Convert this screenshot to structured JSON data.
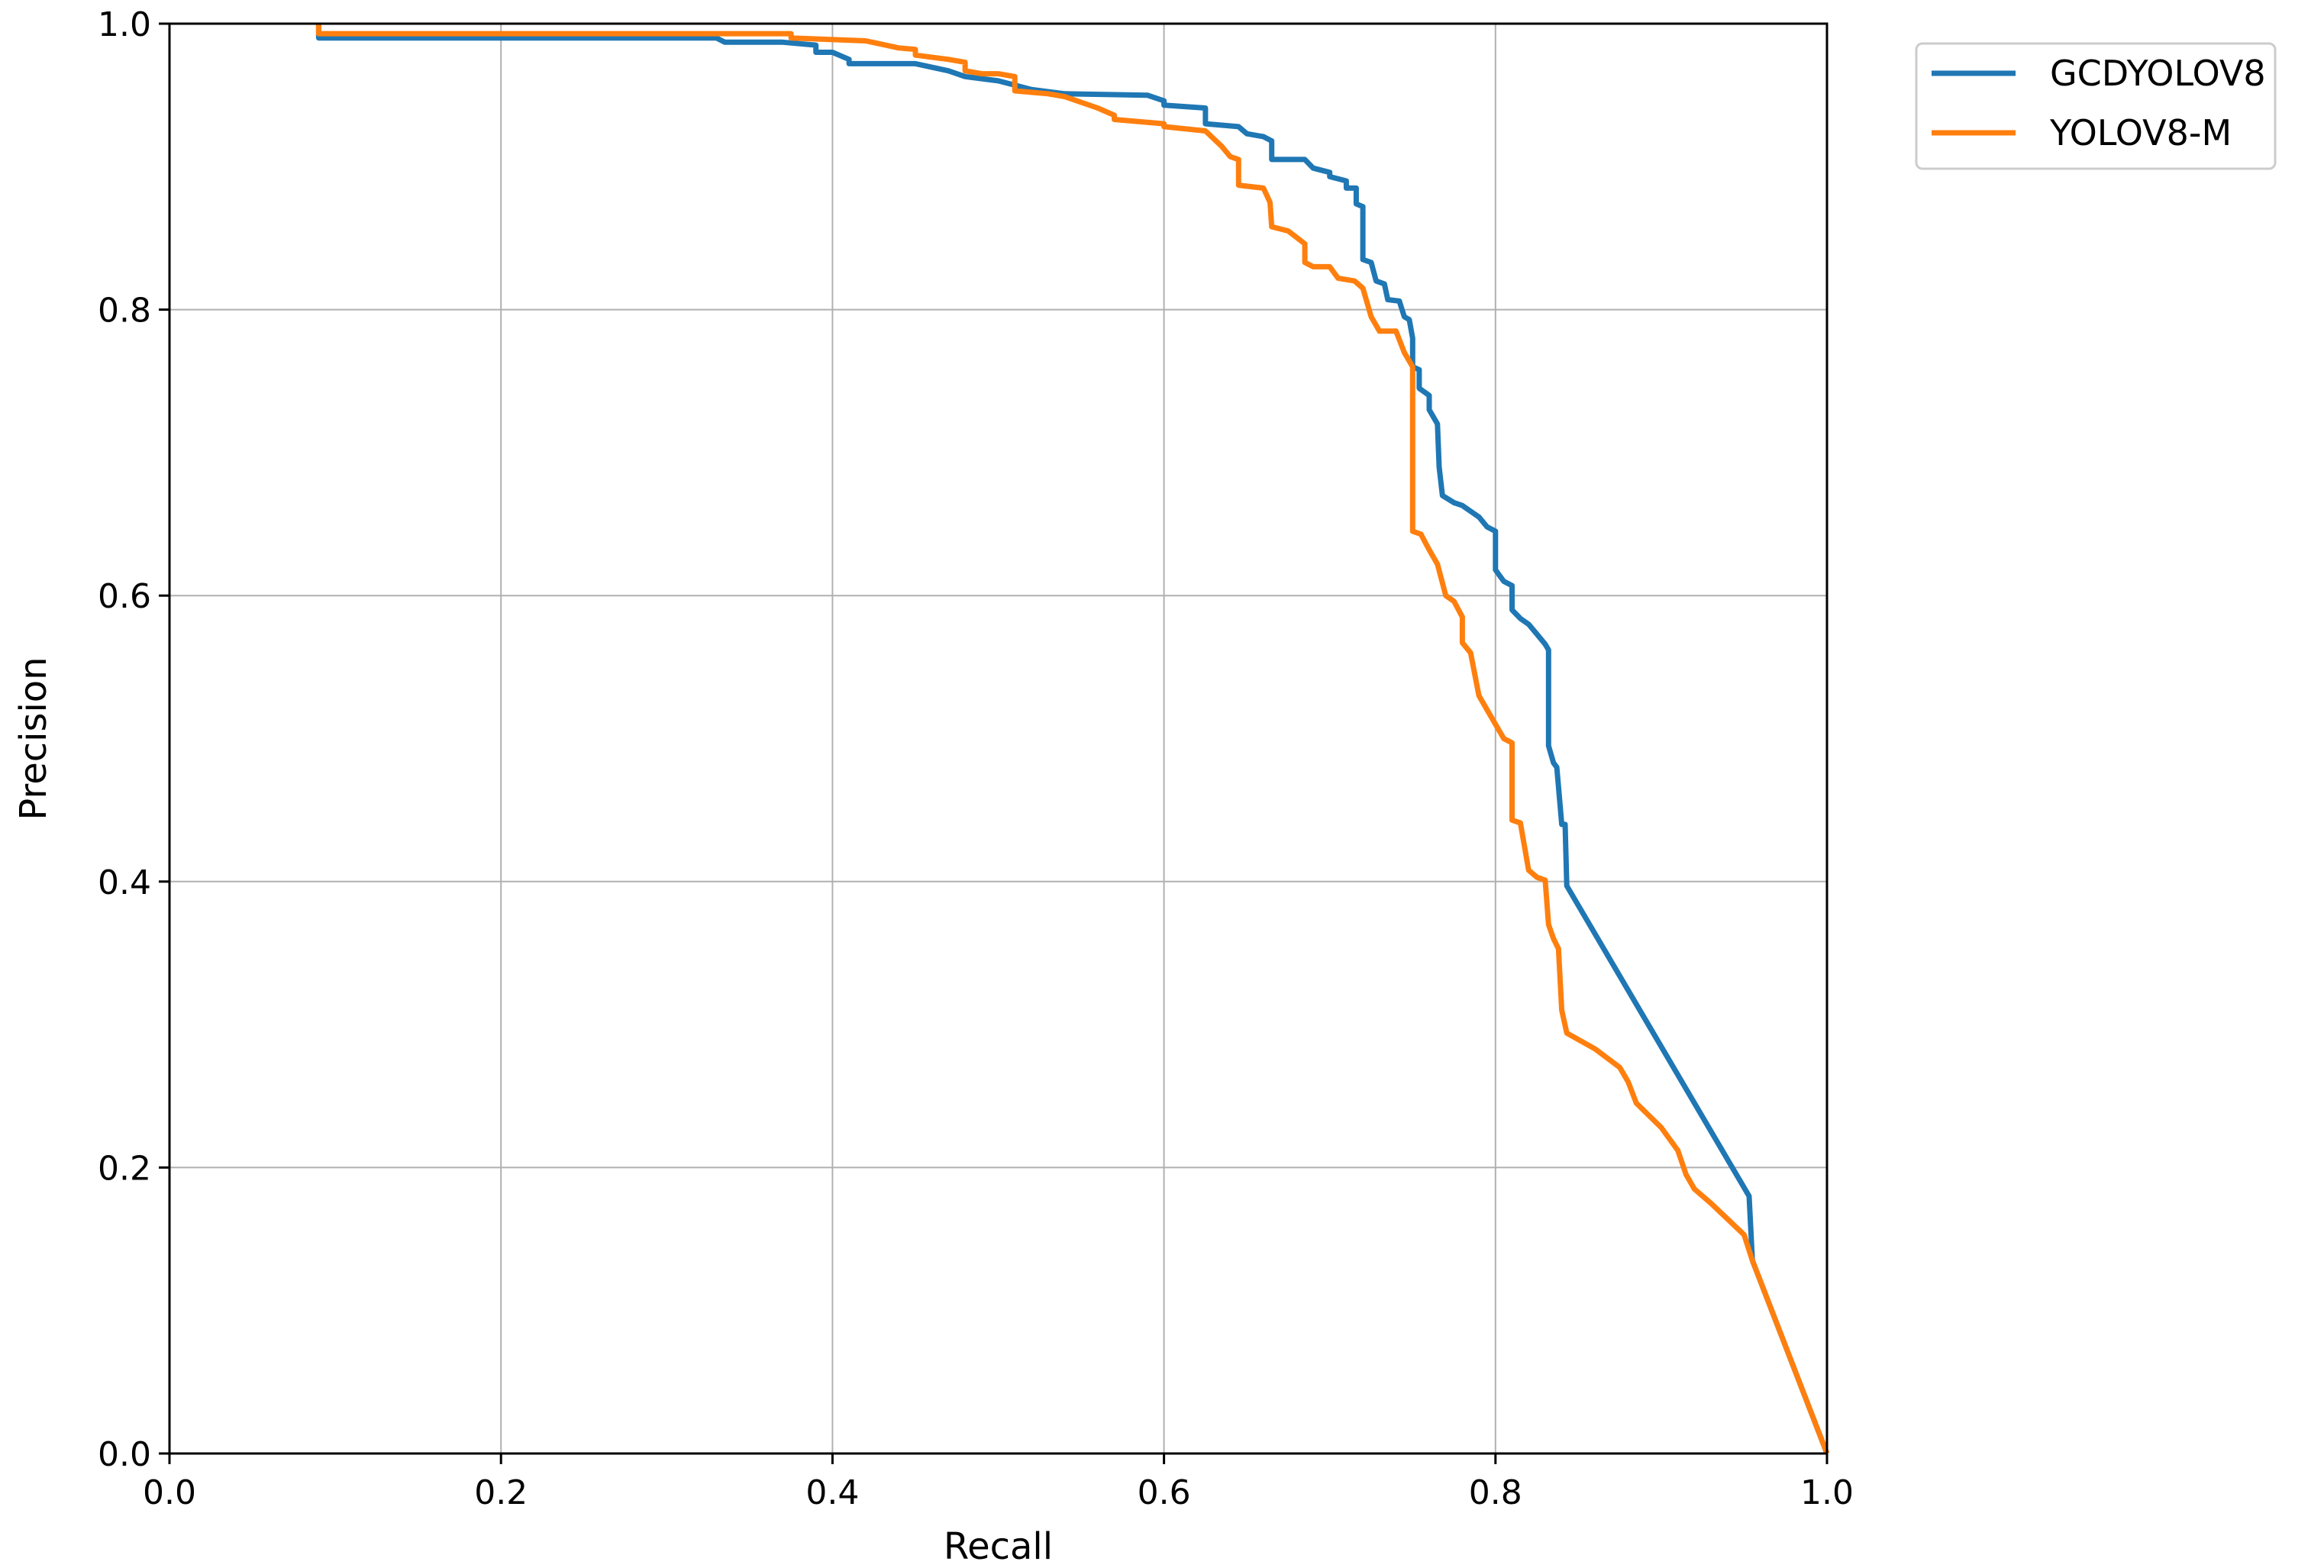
{
  "chart_data": {
    "type": "line",
    "title": "",
    "xlabel": "Recall",
    "ylabel": "Precision",
    "xlim": [
      0.0,
      1.0
    ],
    "ylim": [
      0.0,
      1.0
    ],
    "xticks": [
      "0.0",
      "0.2",
      "0.4",
      "0.6",
      "0.8",
      "1.0"
    ],
    "yticks": [
      "0.0",
      "0.2",
      "0.4",
      "0.6",
      "0.8",
      "1.0"
    ],
    "grid": true,
    "legend_position": "outside top-right",
    "series": [
      {
        "name": "GCDYOLOV8",
        "color": "#1f77b4",
        "points": [
          [
            0.09,
            1.0
          ],
          [
            0.09,
            0.99
          ],
          [
            0.33,
            0.99
          ],
          [
            0.335,
            0.987
          ],
          [
            0.37,
            0.987
          ],
          [
            0.39,
            0.985
          ],
          [
            0.39,
            0.98
          ],
          [
            0.4,
            0.98
          ],
          [
            0.41,
            0.975
          ],
          [
            0.41,
            0.972
          ],
          [
            0.45,
            0.972
          ],
          [
            0.47,
            0.967
          ],
          [
            0.48,
            0.963
          ],
          [
            0.5,
            0.96
          ],
          [
            0.51,
            0.957
          ],
          [
            0.52,
            0.954
          ],
          [
            0.54,
            0.951
          ],
          [
            0.59,
            0.95
          ],
          [
            0.6,
            0.946
          ],
          [
            0.6,
            0.943
          ],
          [
            0.625,
            0.941
          ],
          [
            0.625,
            0.93
          ],
          [
            0.645,
            0.928
          ],
          [
            0.65,
            0.923
          ],
          [
            0.66,
            0.921
          ],
          [
            0.665,
            0.918
          ],
          [
            0.665,
            0.905
          ],
          [
            0.685,
            0.905
          ],
          [
            0.69,
            0.899
          ],
          [
            0.7,
            0.896
          ],
          [
            0.7,
            0.893
          ],
          [
            0.71,
            0.89
          ],
          [
            0.71,
            0.885
          ],
          [
            0.716,
            0.885
          ],
          [
            0.716,
            0.874
          ],
          [
            0.72,
            0.872
          ],
          [
            0.72,
            0.835
          ],
          [
            0.725,
            0.833
          ],
          [
            0.728,
            0.82
          ],
          [
            0.733,
            0.818
          ],
          [
            0.735,
            0.807
          ],
          [
            0.742,
            0.806
          ],
          [
            0.745,
            0.795
          ],
          [
            0.748,
            0.793
          ],
          [
            0.75,
            0.78
          ],
          [
            0.75,
            0.76
          ],
          [
            0.754,
            0.758
          ],
          [
            0.754,
            0.745
          ],
          [
            0.76,
            0.74
          ],
          [
            0.76,
            0.73
          ],
          [
            0.765,
            0.72
          ],
          [
            0.766,
            0.69
          ],
          [
            0.768,
            0.67
          ],
          [
            0.775,
            0.665
          ],
          [
            0.78,
            0.663
          ],
          [
            0.79,
            0.655
          ],
          [
            0.795,
            0.648
          ],
          [
            0.8,
            0.645
          ],
          [
            0.8,
            0.618
          ],
          [
            0.805,
            0.61
          ],
          [
            0.81,
            0.607
          ],
          [
            0.81,
            0.59
          ],
          [
            0.815,
            0.584
          ],
          [
            0.82,
            0.58
          ],
          [
            0.825,
            0.573
          ],
          [
            0.83,
            0.566
          ],
          [
            0.832,
            0.562
          ],
          [
            0.832,
            0.495
          ],
          [
            0.835,
            0.483
          ],
          [
            0.837,
            0.48
          ],
          [
            0.84,
            0.44
          ],
          [
            0.842,
            0.44
          ],
          [
            0.843,
            0.397
          ],
          [
            0.953,
            0.18
          ],
          [
            0.955,
            0.135
          ],
          [
            1.0,
            0.0
          ]
        ]
      },
      {
        "name": "YOLOV8-M",
        "color": "#ff7f0e",
        "points": [
          [
            0.09,
            1.0
          ],
          [
            0.09,
            0.993
          ],
          [
            0.375,
            0.993
          ],
          [
            0.375,
            0.99
          ],
          [
            0.42,
            0.988
          ],
          [
            0.44,
            0.983
          ],
          [
            0.45,
            0.982
          ],
          [
            0.45,
            0.978
          ],
          [
            0.47,
            0.975
          ],
          [
            0.48,
            0.973
          ],
          [
            0.48,
            0.967
          ],
          [
            0.49,
            0.965
          ],
          [
            0.5,
            0.965
          ],
          [
            0.51,
            0.963
          ],
          [
            0.51,
            0.953
          ],
          [
            0.53,
            0.951
          ],
          [
            0.54,
            0.949
          ],
          [
            0.56,
            0.941
          ],
          [
            0.57,
            0.936
          ],
          [
            0.57,
            0.933
          ],
          [
            0.6,
            0.93
          ],
          [
            0.6,
            0.928
          ],
          [
            0.625,
            0.925
          ],
          [
            0.635,
            0.914
          ],
          [
            0.64,
            0.907
          ],
          [
            0.645,
            0.905
          ],
          [
            0.645,
            0.887
          ],
          [
            0.66,
            0.885
          ],
          [
            0.664,
            0.875
          ],
          [
            0.665,
            0.858
          ],
          [
            0.675,
            0.855
          ],
          [
            0.685,
            0.846
          ],
          [
            0.685,
            0.833
          ],
          [
            0.69,
            0.83
          ],
          [
            0.7,
            0.83
          ],
          [
            0.705,
            0.822
          ],
          [
            0.715,
            0.82
          ],
          [
            0.72,
            0.815
          ],
          [
            0.725,
            0.795
          ],
          [
            0.73,
            0.785
          ],
          [
            0.74,
            0.785
          ],
          [
            0.745,
            0.77
          ],
          [
            0.75,
            0.76
          ],
          [
            0.75,
            0.645
          ],
          [
            0.755,
            0.643
          ],
          [
            0.76,
            0.632
          ],
          [
            0.765,
            0.622
          ],
          [
            0.77,
            0.6
          ],
          [
            0.775,
            0.596
          ],
          [
            0.78,
            0.585
          ],
          [
            0.78,
            0.567
          ],
          [
            0.785,
            0.56
          ],
          [
            0.79,
            0.53
          ],
          [
            0.795,
            0.52
          ],
          [
            0.8,
            0.51
          ],
          [
            0.805,
            0.5
          ],
          [
            0.81,
            0.497
          ],
          [
            0.81,
            0.443
          ],
          [
            0.815,
            0.441
          ],
          [
            0.82,
            0.408
          ],
          [
            0.825,
            0.403
          ],
          [
            0.83,
            0.401
          ],
          [
            0.832,
            0.37
          ],
          [
            0.835,
            0.36
          ],
          [
            0.838,
            0.353
          ],
          [
            0.84,
            0.31
          ],
          [
            0.843,
            0.294
          ],
          [
            0.86,
            0.283
          ],
          [
            0.875,
            0.27
          ],
          [
            0.88,
            0.26
          ],
          [
            0.885,
            0.245
          ],
          [
            0.9,
            0.228
          ],
          [
            0.91,
            0.212
          ],
          [
            0.915,
            0.195
          ],
          [
            0.92,
            0.185
          ],
          [
            0.93,
            0.175
          ],
          [
            0.95,
            0.153
          ],
          [
            0.955,
            0.135
          ],
          [
            0.96,
            0.12
          ],
          [
            1.0,
            0.0
          ]
        ]
      }
    ]
  }
}
